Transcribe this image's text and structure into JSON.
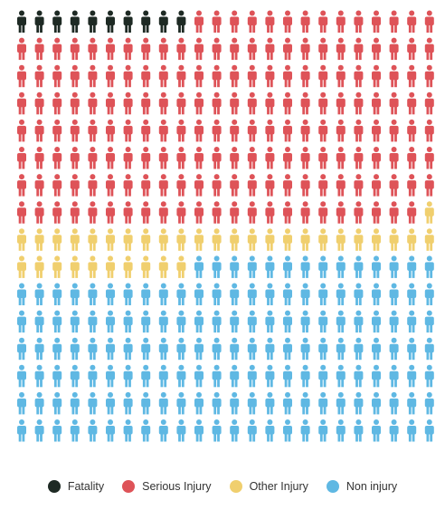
{
  "chart_data": {
    "type": "pictogram",
    "columns": 24,
    "rows": 16,
    "icon": "person-icon",
    "series": [
      {
        "name": "Fatality",
        "count": 10,
        "color": "#1e2a24"
      },
      {
        "name": "Serious Injury",
        "count": 181,
        "color": "#de5358"
      },
      {
        "name": "Other Injury",
        "count": 35,
        "color": "#f0cf6e"
      },
      {
        "name": "Non injury",
        "count": 158,
        "color": "#5fb8e3"
      }
    ],
    "legend_position": "bottom"
  }
}
